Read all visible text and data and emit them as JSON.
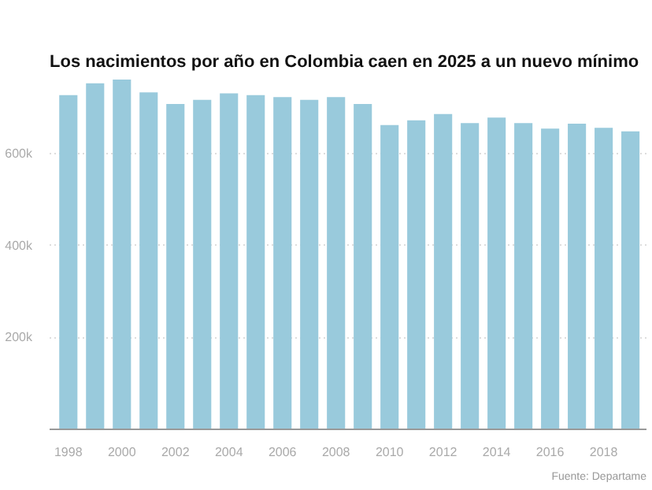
{
  "chart_data": {
    "type": "bar",
    "title": "Los nacimientos por año en Colombia caen en 2025 a un nuevo mínimo",
    "categories": [
      "1998",
      null,
      "2000",
      null,
      "2002",
      null,
      "2004",
      null,
      "2006",
      null,
      "2008",
      null,
      "2010",
      null,
      "2012",
      null,
      "2014",
      null,
      "2016",
      null,
      "2018",
      null
    ],
    "values": [
      728000,
      754000,
      762000,
      734000,
      709000,
      718000,
      732000,
      728000,
      724000,
      718000,
      724000,
      709000,
      663000,
      673000,
      687000,
      667000,
      679000,
      667000,
      655000,
      666000,
      657000,
      649000
    ],
    "color": "#99cadc",
    "ylim": [
      0,
      762000
    ],
    "yticks": [
      {
        "value": 0,
        "label": null
      },
      {
        "value": 200000,
        "label": "200k"
      },
      {
        "value": 400000,
        "label": "400k"
      },
      {
        "value": 600000,
        "label": "600k"
      }
    ],
    "grid": "y",
    "annotations": [
      "Fuente: Departame"
    ]
  }
}
